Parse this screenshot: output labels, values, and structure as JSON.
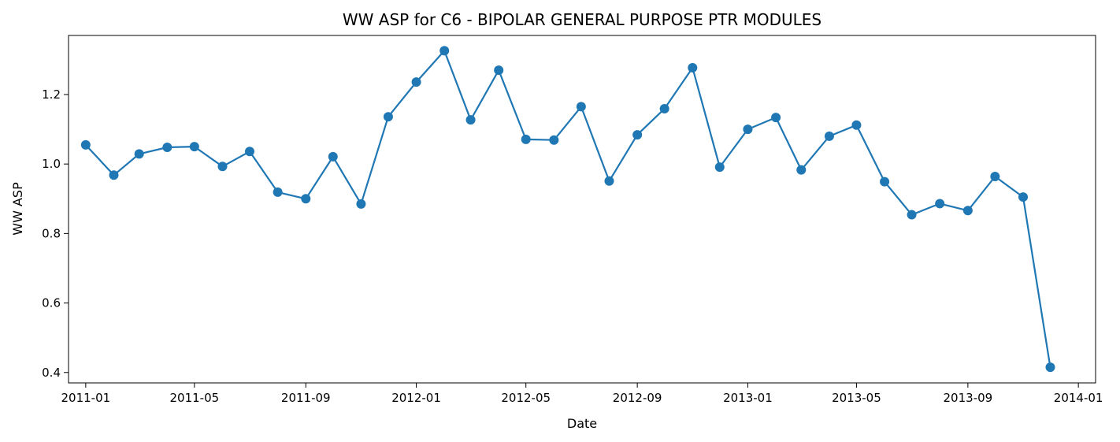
{
  "chart_data": {
    "type": "line",
    "title": "WW ASP for C6 - BIPOLAR GENERAL PURPOSE PTR MODULES",
    "xlabel": "Date",
    "ylabel": "WW ASP",
    "x_ticks": [
      "2011-01",
      "2011-05",
      "2011-09",
      "2012-01",
      "2012-05",
      "2012-09",
      "2013-01",
      "2013-05",
      "2013-09",
      "2014-01"
    ],
    "y_ticks": [
      "0.4",
      "0.6",
      "0.8",
      "1.0",
      "1.2"
    ],
    "ylim": [
      0.37,
      1.37
    ],
    "xlim": [
      "2010-12-13",
      "2014-01-20"
    ],
    "grid": false,
    "line_color": "#1f77b4",
    "series": [
      {
        "x": [
          "2011-01-01",
          "2011-02-01",
          "2011-03-01",
          "2011-04-01",
          "2011-05-01",
          "2011-06-01",
          "2011-07-01",
          "2011-08-01",
          "2011-09-01",
          "2011-10-01",
          "2011-11-01",
          "2011-12-01",
          "2012-01-01",
          "2012-02-01",
          "2012-03-01",
          "2012-04-01",
          "2012-05-01",
          "2012-06-01",
          "2012-07-01",
          "2012-08-01",
          "2012-09-01",
          "2012-10-01",
          "2012-11-01",
          "2012-12-01",
          "2013-01-01",
          "2013-02-01",
          "2013-03-01",
          "2013-04-01",
          "2013-05-01",
          "2013-06-01",
          "2013-07-01",
          "2013-08-01",
          "2013-09-01",
          "2013-10-01",
          "2013-11-01",
          "2013-12-01"
        ],
        "values": [
          1.055,
          0.968,
          1.029,
          1.048,
          1.05,
          0.993,
          1.036,
          0.919,
          0.9,
          1.021,
          0.885,
          1.136,
          1.236,
          1.326,
          1.127,
          1.27,
          1.071,
          1.069,
          1.165,
          0.951,
          1.084,
          1.159,
          1.277,
          0.991,
          1.1,
          1.134,
          0.983,
          1.08,
          1.112,
          0.949,
          0.854,
          0.886,
          0.866,
          0.964,
          0.905,
          0.415
        ]
      }
    ]
  }
}
